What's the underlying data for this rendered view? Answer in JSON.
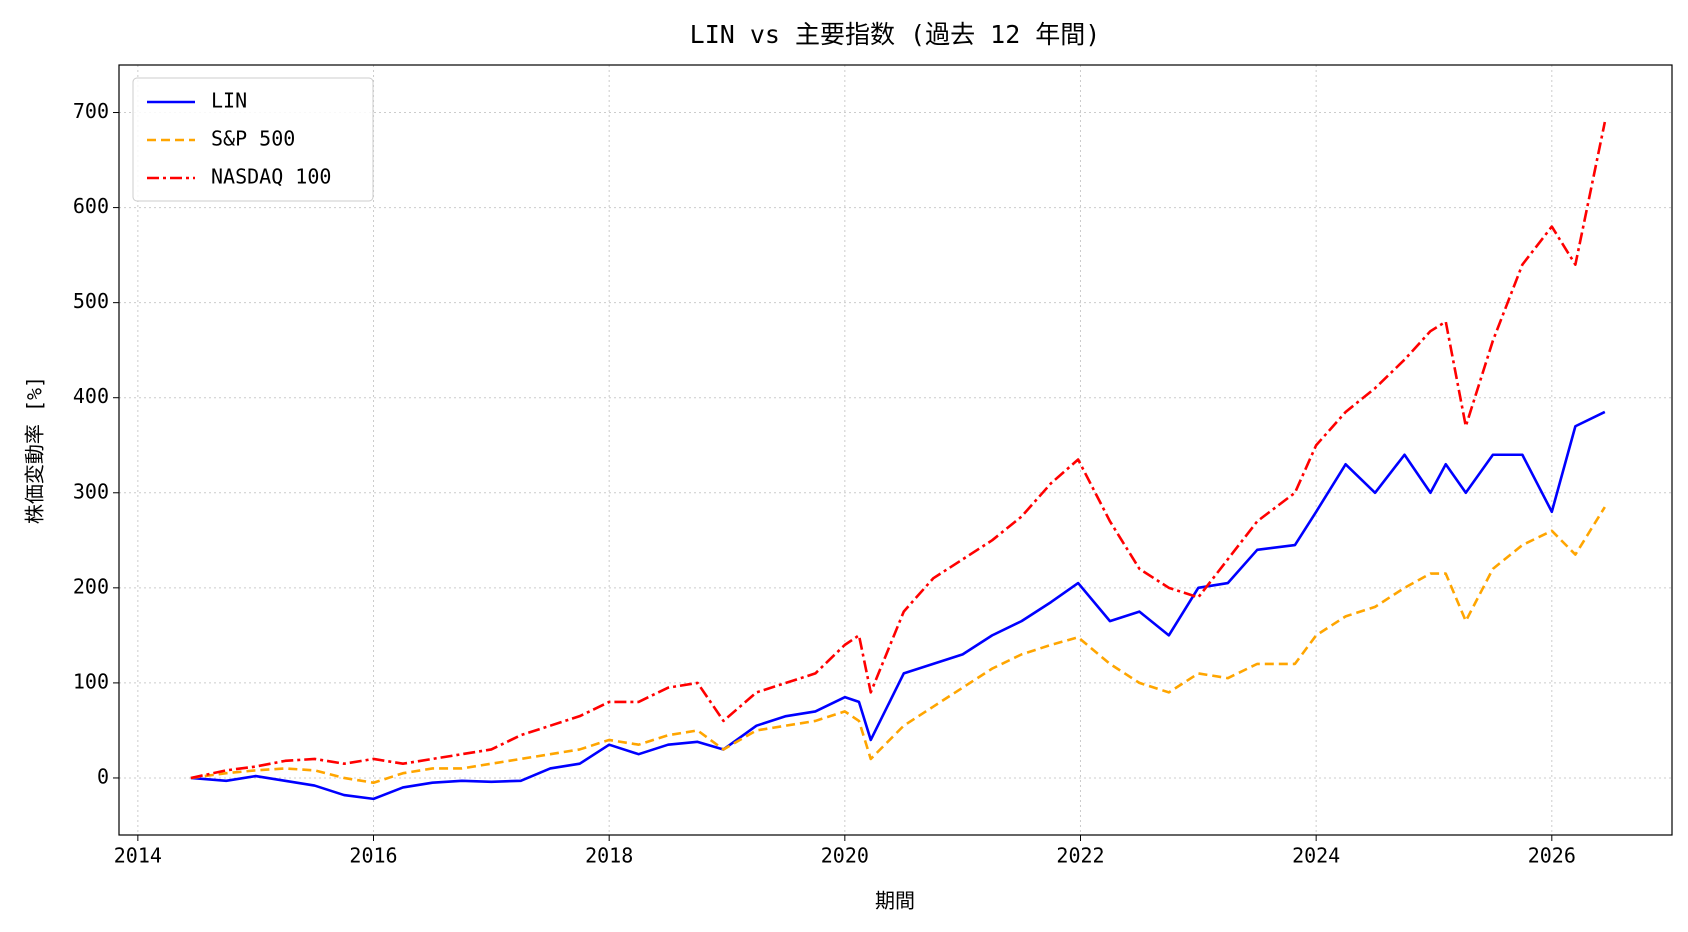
{
  "chart_data": {
    "type": "line",
    "title": "LIN vs 主要指数 (過去 12 年間)",
    "xlabel": "期間",
    "ylabel": "株価変動率 [%]",
    "x": [
      2014.45,
      2014.75,
      2015,
      2015.25,
      2015.5,
      2015.75,
      2016,
      2016.25,
      2016.5,
      2016.75,
      2017,
      2017.25,
      2017.5,
      2017.75,
      2018,
      2018.25,
      2018.5,
      2018.75,
      2018.97,
      2019.25,
      2019.5,
      2019.75,
      2020,
      2020.12,
      2020.22,
      2020.5,
      2020.75,
      2021,
      2021.25,
      2021.5,
      2021.75,
      2021.98,
      2022.25,
      2022.5,
      2022.75,
      2023,
      2023.25,
      2023.5,
      2023.82,
      2024,
      2024.25,
      2024.5,
      2024.75,
      2024.97,
      2025.1,
      2025.27,
      2025.5,
      2025.75,
      2026,
      2026.2,
      2026.45
    ],
    "series": [
      {
        "name": "LIN",
        "color": "#0000ff",
        "linestyle": "solid",
        "values": [
          0,
          -3,
          2,
          -3,
          -8,
          -18,
          -22,
          -10,
          -5,
          -3,
          -4,
          -3,
          10,
          15,
          35,
          25,
          35,
          38,
          30,
          55,
          65,
          70,
          85,
          80,
          40,
          110,
          120,
          130,
          150,
          165,
          185,
          205,
          165,
          175,
          150,
          200,
          205,
          240,
          245,
          280,
          330,
          300,
          340,
          300,
          330,
          300,
          340,
          340,
          280,
          370,
          385
        ]
      },
      {
        "name": "S&P 500",
        "color": "#ffa500",
        "linestyle": "dashed",
        "values": [
          0,
          5,
          8,
          10,
          8,
          0,
          -5,
          5,
          10,
          10,
          15,
          20,
          25,
          30,
          40,
          35,
          45,
          50,
          30,
          50,
          55,
          60,
          70,
          60,
          20,
          55,
          75,
          95,
          115,
          130,
          140,
          148,
          120,
          100,
          90,
          110,
          105,
          120,
          120,
          150,
          170,
          180,
          200,
          215,
          215,
          165,
          220,
          245,
          260,
          235,
          285
        ]
      },
      {
        "name": "NASDAQ 100",
        "color": "#ff0000",
        "linestyle": "dashdot",
        "values": [
          0,
          8,
          12,
          18,
          20,
          15,
          20,
          15,
          20,
          25,
          30,
          45,
          55,
          65,
          80,
          80,
          95,
          100,
          60,
          90,
          100,
          110,
          140,
          150,
          90,
          175,
          210,
          230,
          250,
          275,
          310,
          335,
          270,
          220,
          200,
          190,
          230,
          270,
          300,
          350,
          385,
          410,
          440,
          470,
          480,
          370,
          460,
          540,
          580,
          540,
          690
        ]
      }
    ],
    "xlim": [
      2013.84,
      2027.02
    ],
    "xticks": [
      2014,
      2016,
      2018,
      2020,
      2022,
      2024,
      2026
    ],
    "ylim": [
      -60,
      750
    ],
    "yticks": [
      0,
      100,
      200,
      300,
      400,
      500,
      600,
      700
    ],
    "grid": true,
    "legend": "upper left"
  }
}
